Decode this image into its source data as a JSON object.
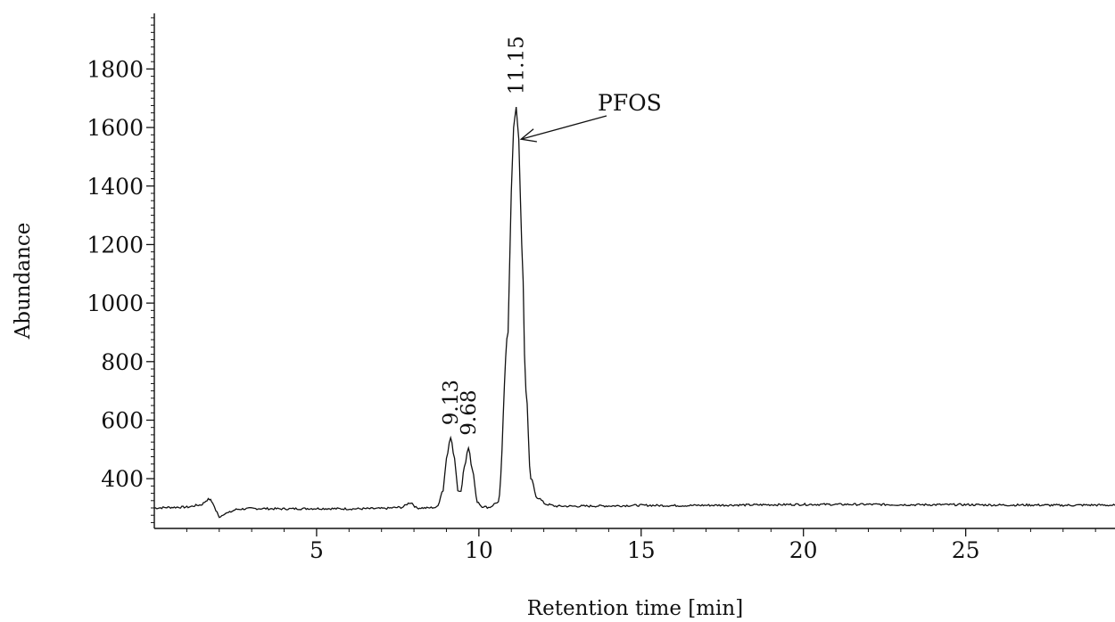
{
  "chart_data": {
    "type": "line",
    "title": "",
    "xlabel": "Retention time [min]",
    "ylabel": "Abundance",
    "xlim": [
      0,
      29.6
    ],
    "ylim": [
      230,
      1990
    ],
    "x_ticks": [
      5,
      10,
      15,
      20,
      25
    ],
    "x_tick_labels": [
      "5",
      "10",
      "15",
      "20",
      "25"
    ],
    "y_ticks": [
      400,
      600,
      800,
      1000,
      1200,
      1400,
      1600,
      1800
    ],
    "y_tick_labels": [
      "400",
      "600",
      "800",
      "1000",
      "1200",
      "1400",
      "1600",
      "1800"
    ],
    "grid": false,
    "legend": "none",
    "line_color": "#111111",
    "series": [
      {
        "x": [
          0.0,
          0.5,
          1.0,
          1.4,
          1.7,
          1.8,
          1.9,
          2.0,
          2.2,
          2.6,
          3.0,
          4.0,
          5.0,
          6.0,
          7.0,
          7.6,
          7.9,
          8.1,
          8.4,
          8.7,
          8.9,
          9.0,
          9.13,
          9.25,
          9.35,
          9.45,
          9.55,
          9.68,
          9.8,
          9.95,
          10.1,
          10.3,
          10.6,
          10.9,
          11.0,
          11.07,
          11.15,
          11.23,
          11.32,
          11.45,
          11.6,
          11.8,
          12.1,
          12.4,
          13.0,
          14.0,
          15.0,
          16.0,
          17.0,
          18.0,
          19.0,
          20.0,
          21.0,
          22.0,
          23.0,
          24.0,
          25.0,
          26.0,
          27.0,
          28.0,
          29.0,
          29.6
        ],
        "y": [
          300,
          302,
          303,
          310,
          330,
          318,
          290,
          270,
          282,
          296,
          298,
          297,
          298,
          297,
          298,
          302,
          318,
          300,
          300,
          302,
          360,
          470,
          540,
          470,
          360,
          360,
          440,
          505,
          430,
          322,
          305,
          302,
          320,
          900,
          1380,
          1600,
          1670,
          1560,
          1200,
          700,
          400,
          335,
          312,
          306,
          306,
          307,
          309,
          308,
          309,
          310,
          311,
          312,
          312,
          312,
          311,
          311,
          311,
          310,
          310,
          309,
          310,
          309
        ]
      }
    ],
    "peak_labels": [
      {
        "x": 9.13,
        "y": 540,
        "label": "9.13"
      },
      {
        "x": 9.68,
        "y": 505,
        "label": "9.68"
      },
      {
        "x": 11.15,
        "y": 1670,
        "label": "11.15"
      }
    ],
    "annotations": [
      {
        "text": "PFOS",
        "arrow_to_x": 11.3,
        "arrow_to_y": 1560
      }
    ]
  }
}
